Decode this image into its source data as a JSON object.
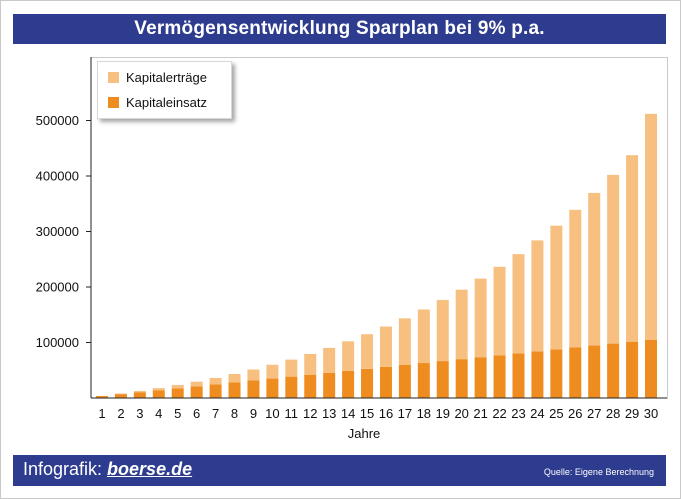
{
  "title": "Vermögensentwicklung Sparplan bei 9% p.a.",
  "footer": {
    "brand_prefix": "Infografik: ",
    "brand_site": "boerse.de",
    "source": "Quelle: Eigene Berechnung"
  },
  "colors": {
    "header_bg": "#2d3c8f",
    "kapitalertraege": "#f7c081",
    "kapitaleinsatz": "#ee8c1f"
  },
  "chart_data": {
    "type": "bar",
    "stacked": true,
    "title": "Vermögensentwicklung Sparplan bei 9% p.a.",
    "xlabel": "Jahre",
    "ylabel": "",
    "ylim": [
      0,
      500000
    ],
    "yticks": [
      100000,
      200000,
      300000,
      400000,
      500000
    ],
    "ytick_labels": [
      "100000",
      "200000",
      "300000",
      "400000",
      "500000"
    ],
    "grid": false,
    "legend_position": "top-left",
    "categories": [
      "1",
      "2",
      "3",
      "4",
      "5",
      "6",
      "7",
      "8",
      "9",
      "10",
      "11",
      "12",
      "13",
      "14",
      "15",
      "16",
      "17",
      "18",
      "19",
      "20",
      "21",
      "22",
      "23",
      "24",
      "25",
      "26",
      "27",
      "28",
      "29",
      "30"
    ],
    "series": [
      {
        "name": "Kapitaleinsatz",
        "color": "#ee8c1f",
        "values": [
          3500,
          7000,
          10500,
          14000,
          17500,
          21000,
          24500,
          28000,
          31500,
          35000,
          38500,
          42000,
          45500,
          49000,
          52500,
          56000,
          59500,
          63000,
          66500,
          70000,
          73500,
          77000,
          80500,
          84000,
          87500,
          91000,
          94500,
          98000,
          101500,
          105000
        ]
      },
      {
        "name": "Kapitalerträge",
        "color": "#f7c081",
        "values": [
          300,
          1000,
          2200,
          3800,
          5900,
          8400,
          11600,
          15300,
          19800,
          24900,
          30700,
          37300,
          44800,
          53200,
          62400,
          72700,
          84000,
          96500,
          110200,
          125200,
          141600,
          159400,
          178700,
          200000,
          223000,
          248000,
          275000,
          304000,
          336000,
          407000
        ]
      }
    ]
  }
}
